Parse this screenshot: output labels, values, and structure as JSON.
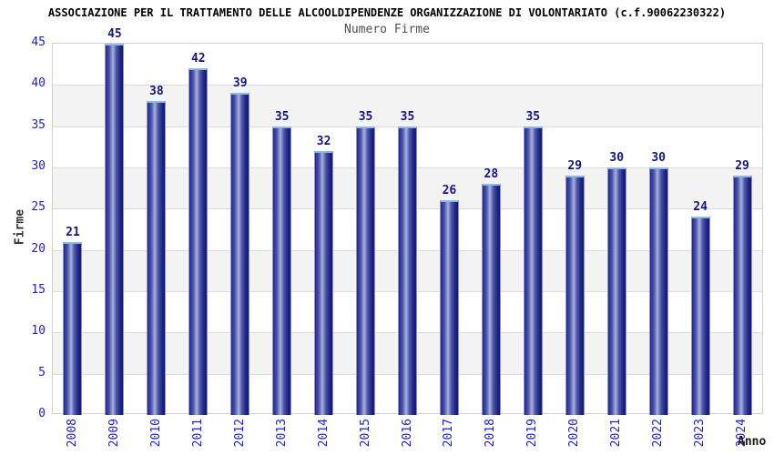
{
  "chart_data": {
    "type": "bar",
    "title": "ASSOCIAZIONE PER IL TRATTAMENTO DELLE ALCOOLDIPENDENZE ORGANIZZAZIONE DI VOLONTARIATO (c.f.90062230322)",
    "subtitle": "Numero Firme",
    "xlabel": "Anno",
    "ylabel": "Firme",
    "categories": [
      "2008",
      "2009",
      "2010",
      "2011",
      "2012",
      "2013",
      "2014",
      "2015",
      "2016",
      "2017",
      "2018",
      "2019",
      "2020",
      "2021",
      "2022",
      "2023",
      "2024"
    ],
    "values": [
      21,
      45,
      38,
      42,
      39,
      35,
      32,
      35,
      35,
      26,
      28,
      35,
      29,
      30,
      30,
      24,
      29
    ],
    "ylim": [
      0,
      45
    ],
    "ytick_step": 5,
    "grid": true,
    "legend": "none",
    "colors": {
      "tick_text": "#2222cc",
      "value_text": "#15157d",
      "bar_edge": "#7b97e2",
      "bar_cap": "#8cb8ea",
      "bar_dark_left": "#232a8e",
      "bar_mid": "#4a55a8",
      "bar_light": "#aab1de",
      "bar_dark_right": "#171d7d",
      "band_fill": "#f3f3f3",
      "grid_line": "#dcdcdc",
      "plot_border": "#d0d0d0",
      "title_text": "#000000",
      "subtitle_text": "#4d4d4d",
      "axis_label_text": "#333333"
    }
  }
}
